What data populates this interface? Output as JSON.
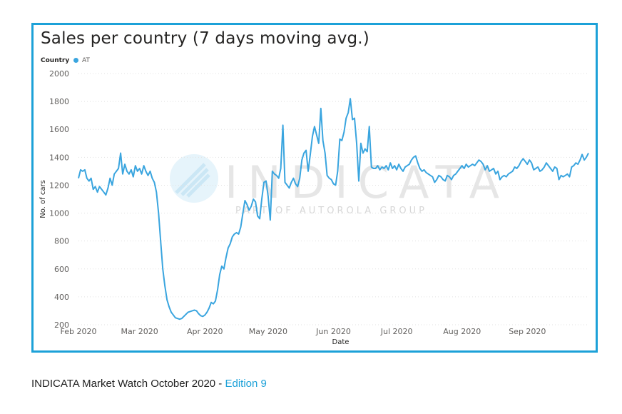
{
  "footer": {
    "text": "INDICATA Market Watch October 2020 - ",
    "edition": "Edition 9"
  },
  "watermark": {
    "brand": "INDICATA",
    "tagline": "PART OF AUTOROLA GROUP"
  },
  "colors": {
    "frame": "#1ca1d8",
    "series": "#3aa5df",
    "footer_link": "#1ca1d8"
  },
  "chart_data": {
    "type": "line",
    "title": "Sales per country (7 days moving avg.)",
    "legend_title": "Country",
    "legend_position": "top-left",
    "grid": true,
    "xlabel": "Date",
    "ylabel": "No. of cars",
    "ylim": [
      200,
      2000
    ],
    "yticks": [
      200,
      400,
      600,
      800,
      1000,
      1200,
      1400,
      1600,
      1800,
      2000
    ],
    "xlim": [
      "2020-02-01",
      "2020-09-30"
    ],
    "xtick_dates": [
      "2020-02-01",
      "2020-03-01",
      "2020-04-01",
      "2020-05-01",
      "2020-06-01",
      "2020-07-01",
      "2020-08-01",
      "2020-09-01"
    ],
    "xtick_labels": [
      "Feb 2020",
      "Mar 2020",
      "Apr 2020",
      "May 2020",
      "Jun 2020",
      "Jul 2020",
      "Aug 2020",
      "Sep 2020"
    ],
    "series": [
      {
        "name": "AT",
        "points": [
          [
            "2020-02-01",
            1250
          ],
          [
            "2020-02-02",
            1310
          ],
          [
            "2020-02-03",
            1300
          ],
          [
            "2020-02-04",
            1310
          ],
          [
            "2020-02-05",
            1250
          ],
          [
            "2020-02-06",
            1230
          ],
          [
            "2020-02-07",
            1250
          ],
          [
            "2020-02-08",
            1170
          ],
          [
            "2020-02-09",
            1190
          ],
          [
            "2020-02-10",
            1150
          ],
          [
            "2020-02-11",
            1190
          ],
          [
            "2020-02-12",
            1170
          ],
          [
            "2020-02-13",
            1150
          ],
          [
            "2020-02-14",
            1130
          ],
          [
            "2020-02-15",
            1180
          ],
          [
            "2020-02-16",
            1250
          ],
          [
            "2020-02-17",
            1200
          ],
          [
            "2020-02-18",
            1280
          ],
          [
            "2020-02-19",
            1300
          ],
          [
            "2020-02-20",
            1320
          ],
          [
            "2020-02-21",
            1430
          ],
          [
            "2020-02-22",
            1280
          ],
          [
            "2020-02-23",
            1350
          ],
          [
            "2020-02-24",
            1300
          ],
          [
            "2020-02-25",
            1280
          ],
          [
            "2020-02-26",
            1310
          ],
          [
            "2020-02-27",
            1260
          ],
          [
            "2020-02-28",
            1340
          ],
          [
            "2020-02-29",
            1300
          ],
          [
            "2020-03-01",
            1320
          ],
          [
            "2020-03-02",
            1280
          ],
          [
            "2020-03-03",
            1340
          ],
          [
            "2020-03-04",
            1300
          ],
          [
            "2020-03-05",
            1270
          ],
          [
            "2020-03-06",
            1300
          ],
          [
            "2020-03-07",
            1250
          ],
          [
            "2020-03-08",
            1220
          ],
          [
            "2020-03-09",
            1150
          ],
          [
            "2020-03-10",
            1000
          ],
          [
            "2020-03-11",
            800
          ],
          [
            "2020-03-12",
            600
          ],
          [
            "2020-03-13",
            480
          ],
          [
            "2020-03-14",
            380
          ],
          [
            "2020-03-15",
            330
          ],
          [
            "2020-03-16",
            290
          ],
          [
            "2020-03-17",
            270
          ],
          [
            "2020-03-18",
            250
          ],
          [
            "2020-03-19",
            245
          ],
          [
            "2020-03-20",
            240
          ],
          [
            "2020-03-21",
            245
          ],
          [
            "2020-03-22",
            260
          ],
          [
            "2020-03-23",
            275
          ],
          [
            "2020-03-24",
            290
          ],
          [
            "2020-03-25",
            295
          ],
          [
            "2020-03-26",
            300
          ],
          [
            "2020-03-27",
            305
          ],
          [
            "2020-03-28",
            300
          ],
          [
            "2020-03-29",
            280
          ],
          [
            "2020-03-30",
            265
          ],
          [
            "2020-03-31",
            260
          ],
          [
            "2020-04-01",
            270
          ],
          [
            "2020-04-02",
            290
          ],
          [
            "2020-04-03",
            320
          ],
          [
            "2020-04-04",
            360
          ],
          [
            "2020-04-05",
            350
          ],
          [
            "2020-04-06",
            370
          ],
          [
            "2020-04-07",
            450
          ],
          [
            "2020-04-08",
            560
          ],
          [
            "2020-04-09",
            620
          ],
          [
            "2020-04-10",
            600
          ],
          [
            "2020-04-11",
            680
          ],
          [
            "2020-04-12",
            750
          ],
          [
            "2020-04-13",
            780
          ],
          [
            "2020-04-14",
            830
          ],
          [
            "2020-04-15",
            850
          ],
          [
            "2020-04-16",
            860
          ],
          [
            "2020-04-17",
            850
          ],
          [
            "2020-04-18",
            900
          ],
          [
            "2020-04-19",
            1000
          ],
          [
            "2020-04-20",
            1090
          ],
          [
            "2020-04-21",
            1060
          ],
          [
            "2020-04-22",
            1020
          ],
          [
            "2020-04-23",
            1050
          ],
          [
            "2020-04-24",
            1100
          ],
          [
            "2020-04-25",
            1080
          ],
          [
            "2020-04-26",
            980
          ],
          [
            "2020-04-27",
            960
          ],
          [
            "2020-04-28",
            1100
          ],
          [
            "2020-04-29",
            1220
          ],
          [
            "2020-04-30",
            1230
          ],
          [
            "2020-05-01",
            1120
          ],
          [
            "2020-05-02",
            950
          ],
          [
            "2020-05-03",
            1300
          ],
          [
            "2020-05-04",
            1280
          ],
          [
            "2020-05-05",
            1270
          ],
          [
            "2020-05-06",
            1250
          ],
          [
            "2020-05-07",
            1320
          ],
          [
            "2020-05-08",
            1630
          ],
          [
            "2020-05-09",
            1220
          ],
          [
            "2020-05-10",
            1200
          ],
          [
            "2020-05-11",
            1180
          ],
          [
            "2020-05-12",
            1220
          ],
          [
            "2020-05-13",
            1250
          ],
          [
            "2020-05-14",
            1210
          ],
          [
            "2020-05-15",
            1190
          ],
          [
            "2020-05-16",
            1250
          ],
          [
            "2020-05-17",
            1380
          ],
          [
            "2020-05-18",
            1430
          ],
          [
            "2020-05-19",
            1450
          ],
          [
            "2020-05-20",
            1300
          ],
          [
            "2020-05-21",
            1420
          ],
          [
            "2020-05-22",
            1550
          ],
          [
            "2020-05-23",
            1620
          ],
          [
            "2020-05-24",
            1560
          ],
          [
            "2020-05-25",
            1500
          ],
          [
            "2020-05-26",
            1750
          ],
          [
            "2020-05-27",
            1520
          ],
          [
            "2020-05-28",
            1430
          ],
          [
            "2020-05-29",
            1270
          ],
          [
            "2020-05-30",
            1250
          ],
          [
            "2020-05-31",
            1240
          ],
          [
            "2020-06-01",
            1210
          ],
          [
            "2020-06-02",
            1200
          ],
          [
            "2020-06-03",
            1300
          ],
          [
            "2020-06-04",
            1530
          ],
          [
            "2020-06-05",
            1520
          ],
          [
            "2020-06-06",
            1580
          ],
          [
            "2020-06-07",
            1680
          ],
          [
            "2020-06-08",
            1720
          ],
          [
            "2020-06-09",
            1820
          ],
          [
            "2020-06-10",
            1670
          ],
          [
            "2020-06-11",
            1680
          ],
          [
            "2020-06-12",
            1500
          ],
          [
            "2020-06-13",
            1230
          ],
          [
            "2020-06-14",
            1500
          ],
          [
            "2020-06-15",
            1430
          ],
          [
            "2020-06-16",
            1460
          ],
          [
            "2020-06-17",
            1440
          ],
          [
            "2020-06-18",
            1620
          ],
          [
            "2020-06-19",
            1330
          ],
          [
            "2020-06-20",
            1320
          ],
          [
            "2020-06-21",
            1320
          ],
          [
            "2020-06-22",
            1340
          ],
          [
            "2020-06-23",
            1310
          ],
          [
            "2020-06-24",
            1330
          ],
          [
            "2020-06-25",
            1320
          ],
          [
            "2020-06-26",
            1340
          ],
          [
            "2020-06-27",
            1310
          ],
          [
            "2020-06-28",
            1360
          ],
          [
            "2020-06-29",
            1320
          ],
          [
            "2020-06-30",
            1340
          ],
          [
            "2020-07-01",
            1310
          ],
          [
            "2020-07-02",
            1350
          ],
          [
            "2020-07-03",
            1320
          ],
          [
            "2020-07-04",
            1300
          ],
          [
            "2020-07-05",
            1330
          ],
          [
            "2020-07-06",
            1340
          ],
          [
            "2020-07-07",
            1350
          ],
          [
            "2020-07-08",
            1380
          ],
          [
            "2020-07-09",
            1400
          ],
          [
            "2020-07-10",
            1410
          ],
          [
            "2020-07-11",
            1360
          ],
          [
            "2020-07-12",
            1320
          ],
          [
            "2020-07-13",
            1300
          ],
          [
            "2020-07-14",
            1310
          ],
          [
            "2020-07-15",
            1290
          ],
          [
            "2020-07-16",
            1280
          ],
          [
            "2020-07-17",
            1270
          ],
          [
            "2020-07-18",
            1260
          ],
          [
            "2020-07-19",
            1220
          ],
          [
            "2020-07-20",
            1240
          ],
          [
            "2020-07-21",
            1270
          ],
          [
            "2020-07-22",
            1260
          ],
          [
            "2020-07-23",
            1240
          ],
          [
            "2020-07-24",
            1230
          ],
          [
            "2020-07-25",
            1270
          ],
          [
            "2020-07-26",
            1260
          ],
          [
            "2020-07-27",
            1240
          ],
          [
            "2020-07-28",
            1270
          ],
          [
            "2020-07-29",
            1280
          ],
          [
            "2020-07-30",
            1300
          ],
          [
            "2020-07-31",
            1320
          ],
          [
            "2020-08-01",
            1340
          ],
          [
            "2020-08-02",
            1320
          ],
          [
            "2020-08-03",
            1350
          ],
          [
            "2020-08-04",
            1330
          ],
          [
            "2020-08-05",
            1340
          ],
          [
            "2020-08-06",
            1350
          ],
          [
            "2020-08-07",
            1340
          ],
          [
            "2020-08-08",
            1360
          ],
          [
            "2020-08-09",
            1380
          ],
          [
            "2020-08-10",
            1370
          ],
          [
            "2020-08-11",
            1350
          ],
          [
            "2020-08-12",
            1310
          ],
          [
            "2020-08-13",
            1340
          ],
          [
            "2020-08-14",
            1300
          ],
          [
            "2020-08-15",
            1310
          ],
          [
            "2020-08-16",
            1320
          ],
          [
            "2020-08-17",
            1280
          ],
          [
            "2020-08-18",
            1300
          ],
          [
            "2020-08-19",
            1240
          ],
          [
            "2020-08-20",
            1260
          ],
          [
            "2020-08-21",
            1270
          ],
          [
            "2020-08-22",
            1260
          ],
          [
            "2020-08-23",
            1280
          ],
          [
            "2020-08-24",
            1290
          ],
          [
            "2020-08-25",
            1300
          ],
          [
            "2020-08-26",
            1330
          ],
          [
            "2020-08-27",
            1320
          ],
          [
            "2020-08-28",
            1340
          ],
          [
            "2020-08-29",
            1370
          ],
          [
            "2020-08-30",
            1390
          ],
          [
            "2020-08-31",
            1370
          ],
          [
            "2020-09-01",
            1350
          ],
          [
            "2020-09-02",
            1380
          ],
          [
            "2020-09-03",
            1360
          ],
          [
            "2020-09-04",
            1310
          ],
          [
            "2020-09-05",
            1320
          ],
          [
            "2020-09-06",
            1330
          ],
          [
            "2020-09-07",
            1300
          ],
          [
            "2020-09-08",
            1310
          ],
          [
            "2020-09-09",
            1330
          ],
          [
            "2020-09-10",
            1360
          ],
          [
            "2020-09-11",
            1340
          ],
          [
            "2020-09-12",
            1320
          ],
          [
            "2020-09-13",
            1300
          ],
          [
            "2020-09-14",
            1330
          ],
          [
            "2020-09-15",
            1320
          ],
          [
            "2020-09-16",
            1240
          ],
          [
            "2020-09-17",
            1270
          ],
          [
            "2020-09-18",
            1260
          ],
          [
            "2020-09-19",
            1270
          ],
          [
            "2020-09-20",
            1280
          ],
          [
            "2020-09-21",
            1260
          ],
          [
            "2020-09-22",
            1330
          ],
          [
            "2020-09-23",
            1340
          ],
          [
            "2020-09-24",
            1360
          ],
          [
            "2020-09-25",
            1350
          ],
          [
            "2020-09-26",
            1380
          ],
          [
            "2020-09-27",
            1420
          ],
          [
            "2020-09-28",
            1380
          ],
          [
            "2020-09-29",
            1400
          ],
          [
            "2020-09-30",
            1430
          ]
        ]
      }
    ]
  }
}
